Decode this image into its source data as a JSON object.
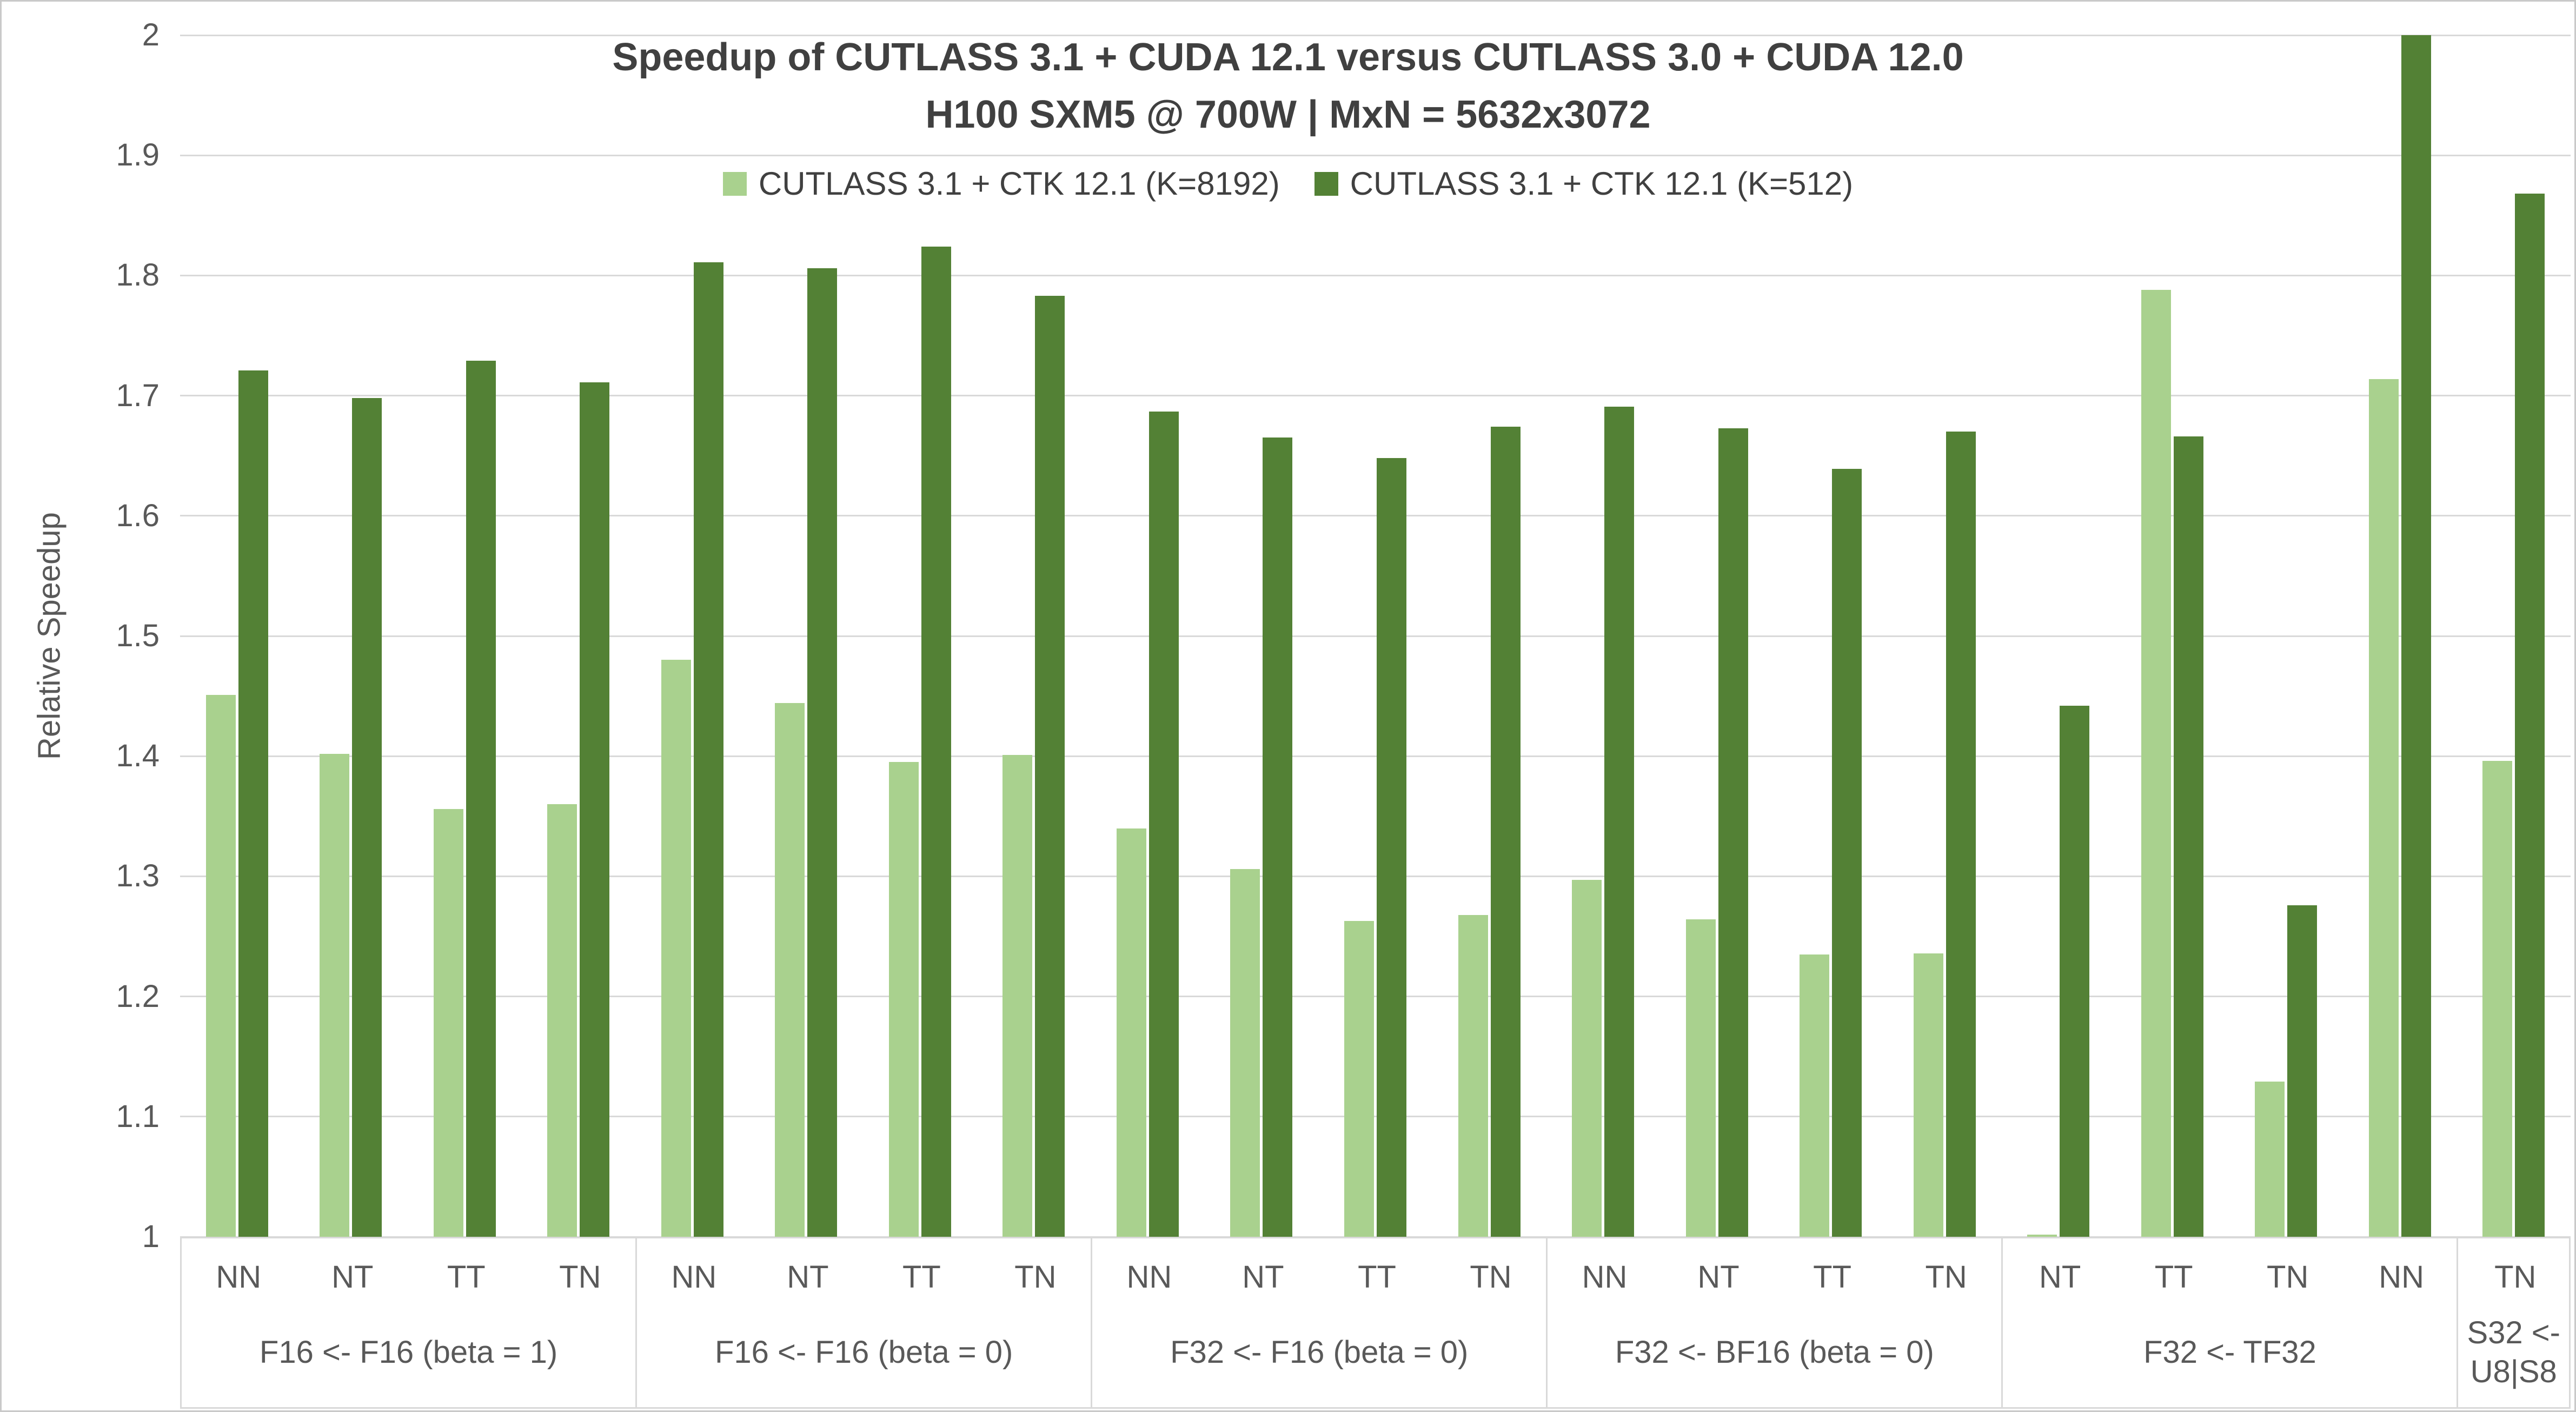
{
  "chart_data": {
    "type": "bar",
    "title": "Speedup of CUTLASS 3.1 + CUDA 12.1 versus CUTLASS 3.0 + CUDA 12.0",
    "subtitle": "H100 SXM5 @ 700W | MxN = 5632x3072",
    "ylabel": "Relative Speedup",
    "xlabel": "",
    "ylim": [
      1,
      2
    ],
    "ytick_step": 0.1,
    "ytick_labels": [
      "1",
      "1.1",
      "1.2",
      "1.3",
      "1.4",
      "1.5",
      "1.6",
      "1.7",
      "1.8",
      "1.9",
      "2"
    ],
    "grid": true,
    "legend_position": "top",
    "groups": [
      {
        "label": "F16 <- F16 (beta = 1)",
        "label_lines": [
          "F16 <- F16 (beta = 1)"
        ],
        "categories": [
          "NN",
          "NT",
          "TT",
          "TN"
        ]
      },
      {
        "label": "F16 <- F16 (beta = 0)",
        "label_lines": [
          "F16 <- F16 (beta = 0)"
        ],
        "categories": [
          "NN",
          "NT",
          "TT",
          "TN"
        ]
      },
      {
        "label": "F32 <- F16 (beta = 0)",
        "label_lines": [
          "F32 <- F16 (beta = 0)"
        ],
        "categories": [
          "NN",
          "NT",
          "TT",
          "TN"
        ]
      },
      {
        "label": "F32 <- BF16 (beta = 0)",
        "label_lines": [
          "F32 <- BF16 (beta = 0)"
        ],
        "categories": [
          "NN",
          "NT",
          "TT",
          "TN"
        ]
      },
      {
        "label": "F32 <- TF32",
        "label_lines": [
          "F32 <- TF32"
        ],
        "categories": [
          "NT",
          "TT",
          "TN",
          "NN"
        ]
      },
      {
        "label": "S32 <- U8|S8",
        "label_lines": [
          "S32 <-",
          "U8|S8"
        ],
        "categories": [
          "TN"
        ]
      }
    ],
    "series": [
      {
        "name": "CUTLASS 3.1 + CTK 12.1 (K=8192)",
        "color": "#A9D18E",
        "values": [
          [
            1.451,
            1.402,
            1.356,
            1.36
          ],
          [
            1.48,
            1.444,
            1.395,
            1.401
          ],
          [
            1.34,
            1.306,
            1.263,
            1.268
          ],
          [
            1.297,
            1.264,
            1.235,
            1.236
          ],
          [
            1.002,
            1.788,
            1.129,
            1.714
          ],
          [
            1.396
          ]
        ]
      },
      {
        "name": "CUTLASS 3.1 + CTK 12.1 (K=512)",
        "color": "#538135",
        "values": [
          [
            1.721,
            1.698,
            1.729,
            1.711
          ],
          [
            1.811,
            1.806,
            1.824,
            1.783
          ],
          [
            1.687,
            1.665,
            1.648,
            1.674
          ],
          [
            1.691,
            1.673,
            1.639,
            1.67
          ],
          [
            1.442,
            1.666,
            1.276,
            2.0
          ],
          [
            1.868
          ]
        ]
      }
    ],
    "colors": {
      "series_light": "#A9D18E",
      "series_dark": "#538135",
      "title_text": "#404040",
      "axis_text": "#595959",
      "gridline": "#D9D9D9",
      "frame_border": "#C9C9C9",
      "background": "#FFFFFF"
    }
  }
}
